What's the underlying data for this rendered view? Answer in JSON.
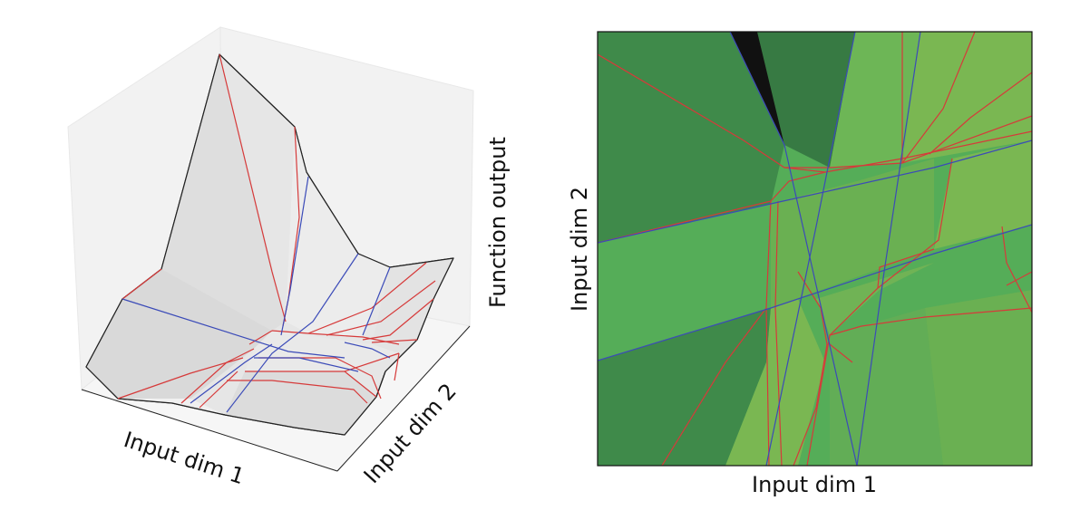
{
  "left_plot": {
    "xlabel": "Input dim 1",
    "ylabel": "Input dim 2",
    "zlabel": "Function output"
  },
  "right_plot": {
    "xlabel": "Input dim 1",
    "ylabel": "Input dim 2"
  },
  "colors": {
    "surface": "#e6e6e6",
    "pane": "#f2f2f2",
    "red_boundary": "#d63a3a",
    "blue_boundary": "#3b4bb8",
    "region_dark": "#3f8a4a",
    "region_mid": "#55ad58",
    "region_light": "#7ab752",
    "region_black": "#111111"
  }
}
